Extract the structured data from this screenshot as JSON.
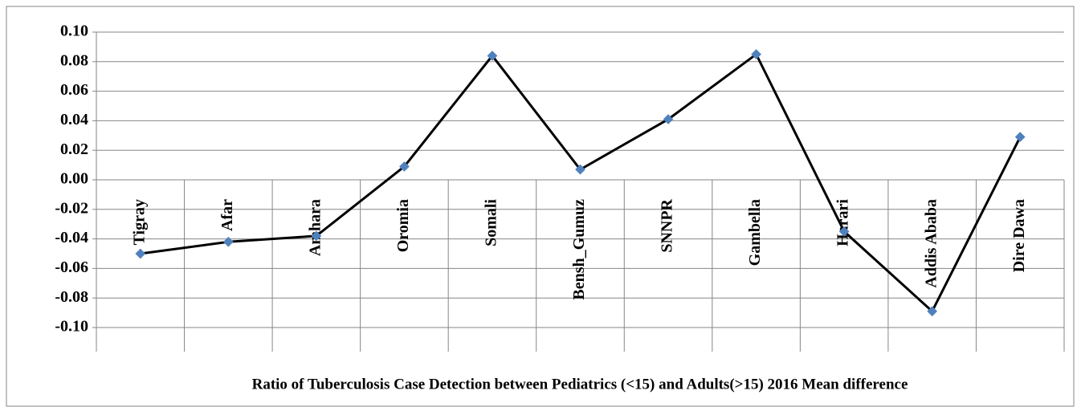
{
  "chart_data": {
    "type": "line",
    "title": "Ratio of Tuberculosis Case Detection between Pediatrics (<15) and Adults(>15) 2016 Mean difference",
    "categories": [
      "Tigray",
      "Afar",
      "Amhara",
      "Oromia",
      "Somali",
      "Bensh_Gumuz",
      "SNNPR",
      "Gambella",
      "Harari",
      "Addis Ababa",
      "Dire Dawa"
    ],
    "values": [
      -0.05,
      -0.042,
      -0.038,
      0.009,
      0.084,
      0.007,
      0.041,
      0.085,
      -0.035,
      -0.089,
      0.029
    ],
    "color": "#000000",
    "marker_color": "#4f81bd",
    "ylim": [
      -0.1,
      0.1
    ],
    "yticks": [
      {
        "value": -0.1,
        "label": "-0.10"
      },
      {
        "value": -0.08,
        "label": "-0.08"
      },
      {
        "value": -0.06,
        "label": "-0.06"
      },
      {
        "value": -0.04,
        "label": "-0.04"
      },
      {
        "value": -0.02,
        "label": "-0.02"
      },
      {
        "value": 0,
        "label": "0.00"
      },
      {
        "value": 0.02,
        "label": "0.02"
      },
      {
        "value": 0.04,
        "label": "0.04"
      },
      {
        "value": 0.06,
        "label": "0.06"
      },
      {
        "value": 0.08,
        "label": "0.08"
      },
      {
        "value": 0.1,
        "label": "0.10"
      }
    ],
    "grid": true
  }
}
